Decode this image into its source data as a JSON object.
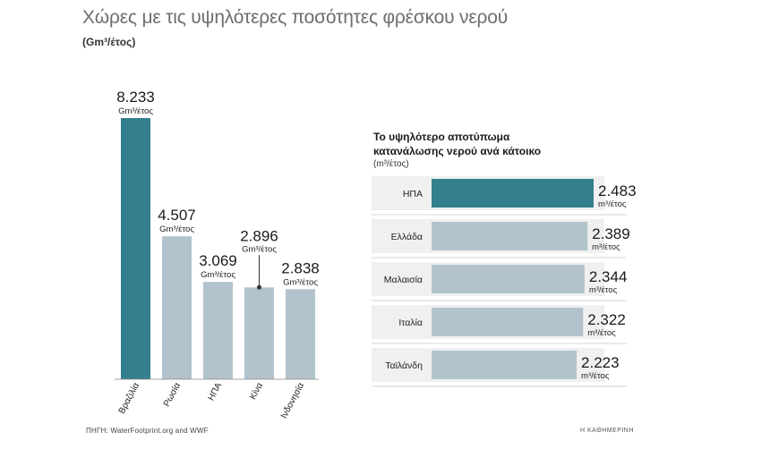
{
  "title": "Χώρες με τις υψηλότερες ποσότητες φρέσκου νερού",
  "subtitle": "(Gm³/έτος)",
  "source": "ΠΗΓΗ: WaterFootprint.org and WWF",
  "brand": "Η ΚΑΘΗΜΕΡΙΝΗ",
  "colors": {
    "highlight": "#347f8e",
    "bar": "#b2c3cd",
    "row_band": "#f0f0f0",
    "divider": "#c8c8c8",
    "leader": "#333333"
  },
  "chart_data": [
    {
      "type": "bar",
      "title": "Χώρες με τις υψηλότερες ποσότητες φρέσκου νερού",
      "subtitle": "(Gm³/έτος)",
      "unit": "Gm³/έτος",
      "categories": [
        "Βραζιλία",
        "Ρωσία",
        "ΗΠΑ",
        "Κίνα",
        "Ινδονησία"
      ],
      "values": [
        8233,
        4507,
        3069,
        2896,
        2838
      ],
      "value_labels": [
        "8.233",
        "4.507",
        "3.069",
        "2.896",
        "2.838"
      ],
      "highlight_index": 0,
      "ylim": [
        0,
        8233
      ],
      "grid": false
    },
    {
      "type": "bar",
      "orientation": "horizontal",
      "title": "Το υψηλότερο αποτύπωμα κατανάλωσης νερού ανά κάτοικο",
      "title_lines": [
        "Το υψηλότερο αποτύπωμα",
        "κατανάλωσης νερού ανά κάτοικο"
      ],
      "subtitle": "(m³/έτος)",
      "unit": "m³/έτος",
      "categories": [
        "ΗΠΑ",
        "Ελλάδα",
        "Μαλαισία",
        "Ιταλία",
        "Ταϊλάνδη"
      ],
      "values": [
        2483,
        2389,
        2344,
        2322,
        2223
      ],
      "value_labels": [
        "2.483",
        "2.389",
        "2.344",
        "2.322",
        "2.223"
      ],
      "highlight_index": 0,
      "xlim": [
        0,
        2483
      ],
      "grid": false
    }
  ]
}
